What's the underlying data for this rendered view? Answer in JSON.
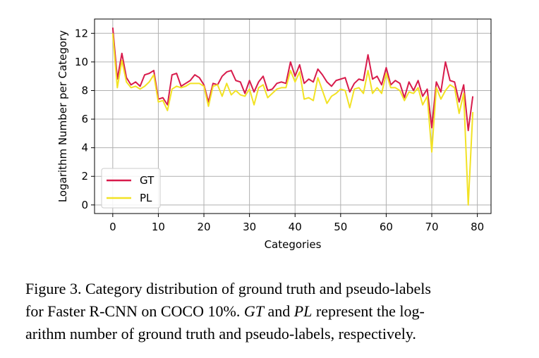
{
  "chart_data": {
    "type": "line",
    "xlabel": "Categories",
    "ylabel": "Logarithm Number per Category",
    "xlim": [
      -4,
      83
    ],
    "ylim": [
      -0.6,
      13.0
    ],
    "xticks": [
      0,
      10,
      20,
      30,
      40,
      50,
      60,
      70,
      80
    ],
    "yticks": [
      0,
      2,
      4,
      6,
      8,
      10,
      12
    ],
    "grid": true,
    "legend_position": "lower-left",
    "series": [
      {
        "name": "GT",
        "color": "#d81b4b",
        "x": [
          0,
          1,
          2,
          3,
          4,
          5,
          6,
          7,
          8,
          9,
          10,
          11,
          12,
          13,
          14,
          15,
          16,
          17,
          18,
          19,
          20,
          21,
          22,
          23,
          24,
          25,
          26,
          27,
          28,
          29,
          30,
          31,
          32,
          33,
          34,
          35,
          36,
          37,
          38,
          39,
          40,
          41,
          42,
          43,
          44,
          45,
          46,
          47,
          48,
          49,
          50,
          51,
          52,
          53,
          54,
          55,
          56,
          57,
          58,
          59,
          60,
          61,
          62,
          63,
          64,
          65,
          66,
          67,
          68,
          69,
          70,
          71,
          72,
          73,
          74,
          75,
          76,
          77,
          78,
          79
        ],
        "values": [
          12.4,
          8.8,
          10.6,
          8.9,
          8.4,
          8.6,
          8.3,
          9.1,
          9.2,
          9.4,
          7.4,
          7.5,
          7.0,
          9.1,
          9.2,
          8.3,
          8.5,
          8.7,
          9.1,
          8.9,
          8.4,
          7.2,
          8.5,
          8.4,
          9.0,
          9.3,
          9.4,
          8.7,
          8.6,
          7.8,
          8.7,
          7.9,
          8.6,
          9.0,
          8.0,
          8.1,
          8.5,
          8.6,
          8.5,
          10.0,
          9.0,
          9.8,
          8.5,
          8.8,
          8.6,
          9.5,
          9.1,
          8.6,
          8.3,
          8.7,
          8.8,
          8.9,
          7.9,
          8.5,
          8.8,
          8.7,
          10.5,
          8.8,
          9.0,
          8.4,
          9.6,
          8.4,
          8.7,
          8.5,
          7.5,
          8.6,
          8.0,
          8.7,
          7.6,
          8.1,
          5.4,
          8.6,
          7.9,
          10.0,
          8.7,
          8.6,
          7.2,
          8.4,
          5.2,
          7.6
        ]
      },
      {
        "name": "PL",
        "color": "#f2e224",
        "x": [
          0,
          1,
          2,
          3,
          4,
          5,
          6,
          7,
          8,
          9,
          10,
          11,
          12,
          13,
          14,
          15,
          16,
          17,
          18,
          19,
          20,
          21,
          22,
          23,
          24,
          25,
          26,
          27,
          28,
          29,
          30,
          31,
          32,
          33,
          34,
          35,
          36,
          37,
          38,
          39,
          40,
          41,
          42,
          43,
          44,
          45,
          46,
          47,
          48,
          49,
          50,
          51,
          52,
          53,
          54,
          55,
          56,
          57,
          58,
          59,
          60,
          61,
          62,
          63,
          64,
          65,
          66,
          67,
          68,
          69,
          70,
          71,
          72,
          73,
          74,
          75,
          76,
          77,
          78,
          79
        ],
        "values": [
          12.0,
          8.2,
          10.1,
          8.6,
          8.2,
          8.3,
          8.1,
          8.3,
          8.6,
          9.1,
          7.2,
          7.3,
          6.6,
          8.1,
          8.3,
          8.2,
          8.3,
          8.5,
          8.5,
          8.5,
          8.3,
          6.9,
          8.3,
          8.4,
          7.6,
          8.5,
          7.7,
          8.0,
          7.7,
          7.6,
          8.1,
          7.0,
          8.2,
          8.4,
          7.5,
          7.8,
          8.1,
          8.2,
          8.2,
          9.4,
          8.6,
          9.3,
          7.4,
          7.5,
          7.3,
          8.9,
          8.0,
          7.1,
          7.6,
          7.8,
          8.1,
          8.0,
          6.8,
          8.1,
          8.2,
          7.8,
          9.4,
          7.8,
          8.2,
          7.8,
          9.2,
          8.2,
          8.2,
          8.0,
          7.3,
          7.9,
          7.8,
          8.2,
          7.0,
          7.6,
          3.7,
          8.2,
          7.4,
          8.0,
          8.4,
          8.2,
          6.4,
          7.8,
          0.0,
          6.5
        ]
      }
    ]
  },
  "caption": {
    "line1": "Figure 3. Category distribution of ground truth and pseudo-labels",
    "line2_a": "for Faster R-CNN on COCO 10%. ",
    "line2_gt": "GT",
    "line2_b": " and ",
    "line2_pl": "PL",
    "line2_c": " represent the log-",
    "line3": "arithm number of ground truth and pseudo-labels, respectively."
  }
}
